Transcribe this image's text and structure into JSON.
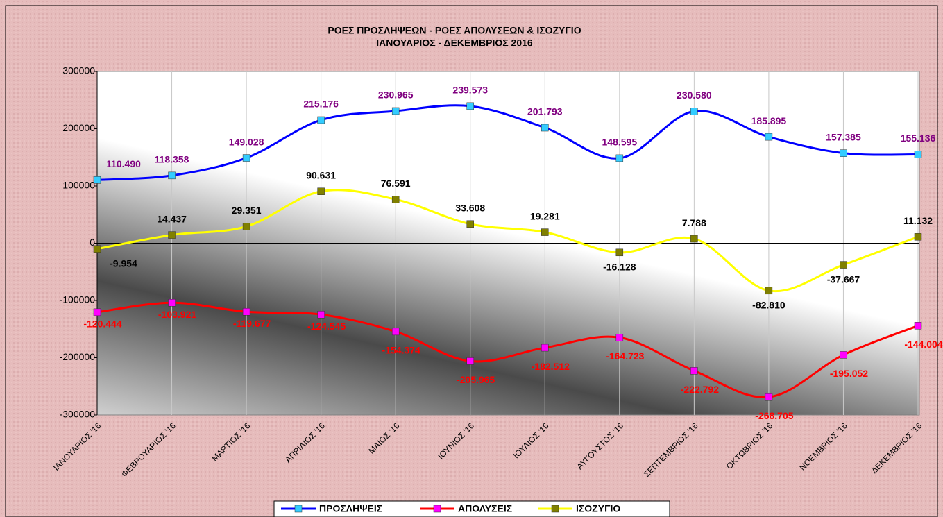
{
  "chart_data": {
    "type": "line",
    "title": "ΡΟΕΣ ΠΡΟΣΛΗΨΕΩΝ -  ΡΟΕΣ ΑΠΟΛΥΣΕΩΝ  & ΙΣΟΖΥΓΙΟ",
    "subtitle": "ΙΑΝΟΥΑΡΙΟΣ -  ΔΕΚΕΜΒΡΙΟΣ  2016",
    "categories": [
      "ΙΑΝΟΥΑΡΙΟΣ '16",
      "ΦΕΒΡΟΥΑΡΙΟΣ '16",
      "ΜΑΡΤΙΟΣ '16",
      "ΑΠΡΙΛΙΟΣ '16",
      "ΜΑΙΟΣ '16",
      "ΙΟΥΝΙΟΣ '16",
      "ΙΟΥΛΙΟΣ '16",
      "ΑΥΓΟΥΣΤΟΣ '16",
      "ΣΕΠΤΕΜΒΡΙΟΣ '16",
      "ΟΚΤΩΒΡΙΟΣ '16",
      "ΝΟΕΜΒΡΙΟΣ '16",
      "ΔΕΚΕΜΒΡΙΟΣ '16"
    ],
    "series": [
      {
        "name": "ΠΡΟΣΛΗΨΕΙΣ",
        "color": "#0000ff",
        "marker_color": "#33ccff",
        "label_color": "#800080",
        "values": [
          110490,
          118358,
          149028,
          215176,
          230965,
          239573,
          201793,
          148595,
          230580,
          185895,
          157385,
          155136
        ],
        "value_labels": [
          "110.490",
          "118.358",
          "149.028",
          "215.176",
          "230.965",
          "239.573",
          "201.793",
          "148.595",
          "230.580",
          "185.895",
          "157.385",
          "155.136"
        ]
      },
      {
        "name": "ΑΠΟΛΥΣΕΙΣ",
        "color": "#ff0000",
        "marker_color": "#ff00ff",
        "label_color": "#ff0000",
        "values": [
          -120444,
          -103921,
          -119677,
          -124545,
          -154374,
          -205965,
          -182512,
          -164723,
          -222792,
          -268705,
          -195052,
          -144004
        ],
        "value_labels": [
          "-120.444",
          "-103.921",
          "-119.677",
          "-124.545",
          "-154.374",
          "-205.965",
          "-182.512",
          "-164.723",
          "-222.792",
          "-268.705",
          "-195.052",
          "-144.004"
        ]
      },
      {
        "name": "ΙΣΟΖΥΓΙΟ",
        "color": "#ffff00",
        "marker_color": "#808000",
        "label_color": "#000000",
        "values": [
          -9954,
          14437,
          29351,
          90631,
          76591,
          33608,
          19281,
          -16128,
          7788,
          -82810,
          -37667,
          11132
        ],
        "value_labels": [
          "-9.954",
          "14.437",
          "29.351",
          "90.631",
          "76.591",
          "33.608",
          "19.281",
          "-16.128",
          "7.788",
          "-82.810",
          "-37.667",
          "11.132"
        ]
      }
    ],
    "ylim": [
      -300000,
      300000
    ],
    "yticks": [
      -300000,
      -200000,
      -100000,
      0,
      100000,
      200000,
      300000
    ],
    "legend": "bottom"
  }
}
